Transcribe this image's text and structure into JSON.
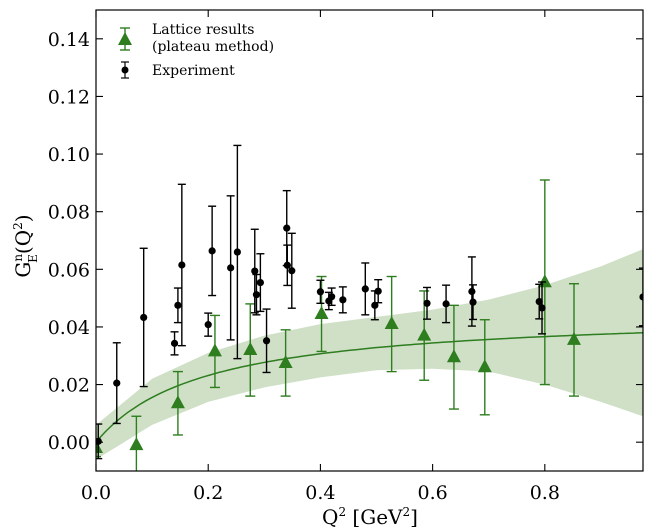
{
  "chart_data": {
    "type": "scatter",
    "xlabel": "Q² [GeV²]",
    "ylabel": "G_E^n(Q²)",
    "ylabel_parts": {
      "base": "G",
      "sup": "n",
      "sub": "E",
      "arg": "(Q",
      "argsup": "2",
      "close": ")"
    },
    "xlabel_parts": {
      "base": "Q",
      "sup": "2",
      "rest": " [GeV",
      "unitsup": "2",
      "close": "]"
    },
    "xlim": [
      0.0,
      0.975
    ],
    "ylim": [
      -0.01,
      0.15
    ],
    "xticks": [
      0.0,
      0.2,
      0.4,
      0.6,
      0.8
    ],
    "xtick_labels": [
      "0.0",
      "0.2",
      "0.4",
      "0.6",
      "0.8"
    ],
    "yticks": [
      0.0,
      0.02,
      0.04,
      0.06,
      0.08,
      0.1,
      0.12,
      0.14
    ],
    "ytick_labels": [
      "0.00",
      "0.02",
      "0.04",
      "0.06",
      "0.08",
      "0.10",
      "0.12",
      "0.14"
    ],
    "grid": false,
    "legend": {
      "placement": "top-left",
      "entries": [
        {
          "line1": "Lattice results",
          "line2": "(plateau method)"
        },
        {
          "line1": "Experiment"
        }
      ]
    },
    "colors": {
      "lattice": "#2e7d1f",
      "band": "#cfe0c7",
      "experiment": "#000000"
    },
    "series": [
      {
        "name": "Lattice results (plateau method)",
        "marker": "triangle",
        "points": [
          {
            "x": 0.0,
            "y": -0.002,
            "err": 0.003
          },
          {
            "x": 0.072,
            "y": -0.001,
            "err": 0.01
          },
          {
            "x": 0.146,
            "y": 0.0135,
            "err": 0.011
          },
          {
            "x": 0.212,
            "y": 0.0315,
            "err": 0.0125
          },
          {
            "x": 0.275,
            "y": 0.032,
            "err": 0.016
          },
          {
            "x": 0.338,
            "y": 0.0275,
            "err": 0.0115
          },
          {
            "x": 0.402,
            "y": 0.0445,
            "err": 0.013
          },
          {
            "x": 0.527,
            "y": 0.041,
            "err": 0.0165
          },
          {
            "x": 0.585,
            "y": 0.037,
            "err": 0.0155
          },
          {
            "x": 0.638,
            "y": 0.0295,
            "err": 0.018
          },
          {
            "x": 0.693,
            "y": 0.026,
            "err": 0.0165
          },
          {
            "x": 0.8,
            "y": 0.0555,
            "err": 0.0355
          },
          {
            "x": 0.852,
            "y": 0.0355,
            "err": 0.0195
          }
        ]
      },
      {
        "name": "Experiment",
        "marker": "circle",
        "points": [
          {
            "x": 0.004,
            "y": 0.0003,
            "err": 0.006
          },
          {
            "x": 0.037,
            "y": 0.0205,
            "err": 0.014
          },
          {
            "x": 0.085,
            "y": 0.0433,
            "err": 0.024
          },
          {
            "x": 0.14,
            "y": 0.0343,
            "err": 0.004
          },
          {
            "x": 0.146,
            "y": 0.0475,
            "err": 0.006
          },
          {
            "x": 0.153,
            "y": 0.0615,
            "err": 0.028
          },
          {
            "x": 0.2,
            "y": 0.0408,
            "err": 0.004
          },
          {
            "x": 0.207,
            "y": 0.0664,
            "err": 0.0155
          },
          {
            "x": 0.24,
            "y": 0.0605,
            "err": 0.025
          },
          {
            "x": 0.252,
            "y": 0.066,
            "err": 0.037
          },
          {
            "x": 0.283,
            "y": 0.0594,
            "err": 0.0145
          },
          {
            "x": 0.286,
            "y": 0.0512,
            "err": 0.007
          },
          {
            "x": 0.293,
            "y": 0.0554,
            "err": 0.01
          },
          {
            "x": 0.304,
            "y": 0.0352,
            "err": 0.011
          },
          {
            "x": 0.34,
            "y": 0.0743,
            "err": 0.013
          },
          {
            "x": 0.341,
            "y": 0.0614,
            "err": 0.007
          },
          {
            "x": 0.349,
            "y": 0.0595,
            "err": 0.013
          },
          {
            "x": 0.4,
            "y": 0.0522,
            "err": 0.004
          },
          {
            "x": 0.415,
            "y": 0.049,
            "err": 0.003
          },
          {
            "x": 0.42,
            "y": 0.0505,
            "err": 0.003
          },
          {
            "x": 0.44,
            "y": 0.0494,
            "err": 0.0045
          },
          {
            "x": 0.48,
            "y": 0.0532,
            "err": 0.009
          },
          {
            "x": 0.497,
            "y": 0.0475,
            "err": 0.005
          },
          {
            "x": 0.503,
            "y": 0.0524,
            "err": 0.004
          },
          {
            "x": 0.59,
            "y": 0.0482,
            "err": 0.0055
          },
          {
            "x": 0.624,
            "y": 0.048,
            "err": 0.0065
          },
          {
            "x": 0.67,
            "y": 0.0523,
            "err": 0.012
          },
          {
            "x": 0.672,
            "y": 0.0486,
            "err": 0.006
          },
          {
            "x": 0.79,
            "y": 0.0488,
            "err": 0.006
          },
          {
            "x": 0.795,
            "y": 0.0466,
            "err": 0.009
          },
          {
            "x": 0.975,
            "y": 0.0504,
            "err": 0.01
          }
        ]
      }
    ],
    "fit": {
      "form": "A*Q2/(Q2+B)",
      "A": 0.0455,
      "B": 0.193,
      "x_range": [
        0.0,
        0.975
      ],
      "band_x": [
        0.0,
        0.05,
        0.1,
        0.2,
        0.3,
        0.4,
        0.5,
        0.6,
        0.7,
        0.8,
        0.9,
        0.975
      ],
      "band_upper": [
        0.006,
        0.014,
        0.022,
        0.031,
        0.037,
        0.041,
        0.0435,
        0.046,
        0.0495,
        0.0545,
        0.061,
        0.067
      ],
      "band_lower": [
        -0.006,
        0.0,
        0.006,
        0.014,
        0.019,
        0.0225,
        0.025,
        0.0255,
        0.0245,
        0.02,
        0.014,
        0.009
      ]
    }
  }
}
